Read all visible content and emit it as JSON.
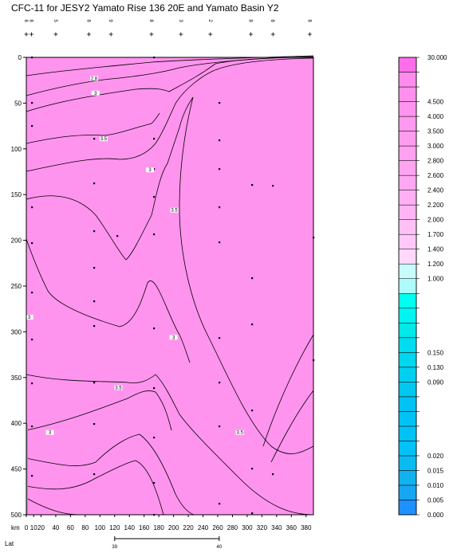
{
  "chart_data": {
    "type": "contour",
    "title": "CFC-11 for JESY2 Yamato Rise 136 20E and Yamato Basin Y2",
    "xlabel": "km",
    "xlabel2": "Lat",
    "xlim": [
      0,
      390
    ],
    "ylim": [
      0,
      500
    ],
    "x_ticks": [
      0,
      10,
      20,
      40,
      60,
      80,
      100,
      120,
      140,
      160,
      180,
      200,
      220,
      240,
      260,
      280,
      300,
      320,
      340,
      360,
      380
    ],
    "y_ticks": [
      0,
      50,
      100,
      150,
      200,
      250,
      300,
      350,
      400,
      450,
      500
    ],
    "lat_ticks": [
      {
        "km": 120,
        "label": "39"
      },
      {
        "km": 262,
        "label": "40"
      }
    ],
    "station_labels": [
      "8",
      "8",
      "5",
      "8",
      "9",
      "8",
      "3",
      "2",
      "8",
      "8",
      "8"
    ],
    "station_km": [
      0,
      7,
      40,
      85,
      115,
      170,
      210,
      250,
      305,
      335,
      385
    ],
    "contour_labels": [
      {
        "x": 92,
        "y": 23,
        "text": "2.8"
      },
      {
        "x": 94,
        "y": 39,
        "text": "3"
      },
      {
        "x": 105,
        "y": 89,
        "text": "3.5"
      },
      {
        "x": 168,
        "y": 123,
        "text": "3"
      },
      {
        "x": 201,
        "y": 167,
        "text": "3.5"
      },
      {
        "x": 4,
        "y": 284,
        "text": "3"
      },
      {
        "x": 200,
        "y": 306,
        "text": "3"
      },
      {
        "x": 125,
        "y": 361,
        "text": "3.5"
      },
      {
        "x": 32,
        "y": 410,
        "text": "3"
      },
      {
        "x": 290,
        "y": 410,
        "text": "3.5"
      }
    ],
    "colorbar": {
      "levels": [
        "0.000",
        "0.005",
        "0.010",
        "0.015",
        "0.020",
        "",
        "",
        "",
        "",
        "0.090",
        "0.130",
        "0.150",
        "",
        "",
        "",
        "",
        "1.000",
        "1.200",
        "1.400",
        "1.700",
        "2.000",
        "2.200",
        "2.400",
        "2.600",
        "2.800",
        "3.000",
        "3.500",
        "4.000",
        "4.500",
        "",
        "",
        "30.000"
      ],
      "colors": [
        "#1e90ff",
        "#16a6f2",
        "#10b2f0",
        "#0abbf2",
        "#00c2f5",
        "#00c2f5",
        "#00c2f5",
        "#00c2f5",
        "#00c8f0",
        "#00d0f0",
        "#00d6f0",
        "#00dcf0",
        "#00e8e8",
        "#00f4f0",
        "#00ffee",
        "#aefcfa",
        "#c8fcfc",
        "#ffd8fb",
        "#ffc8f8",
        "#ffc0f6",
        "#ffb4f4",
        "#ffb0f4",
        "#ffa8f2",
        "#ffa4f1",
        "#ffa0f0",
        "#ff9cf0",
        "#ff98ef",
        "#ff94ee",
        "#ff90ee",
        "#ff8ced",
        "#ff6eea"
      ]
    }
  }
}
